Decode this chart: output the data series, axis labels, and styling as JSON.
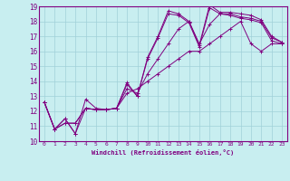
{
  "xlabel": "Windchill (Refroidissement éolien,°C)",
  "background_color": "#c8eef0",
  "line_color": "#800080",
  "grid_color": "#a0d0d8",
  "xlim": [
    -0.5,
    23.5
  ],
  "ylim": [
    10,
    19
  ],
  "xticks": [
    0,
    1,
    2,
    3,
    4,
    5,
    6,
    7,
    8,
    9,
    10,
    11,
    12,
    13,
    14,
    15,
    16,
    17,
    18,
    19,
    20,
    21,
    22,
    23
  ],
  "yticks": [
    10,
    11,
    12,
    13,
    14,
    15,
    16,
    17,
    18,
    19
  ],
  "series": [
    [
      12.6,
      10.8,
      11.5,
      10.5,
      12.8,
      12.2,
      12.1,
      12.2,
      13.9,
      13.0,
      15.6,
      17.0,
      18.7,
      18.5,
      18.0,
      16.4,
      19.1,
      18.6,
      18.6,
      18.5,
      18.4,
      18.1,
      17.0,
      16.6
    ],
    [
      12.6,
      10.8,
      11.5,
      10.5,
      12.2,
      12.1,
      12.1,
      12.2,
      13.8,
      13.0,
      15.5,
      16.9,
      18.5,
      18.4,
      17.9,
      16.3,
      18.9,
      18.5,
      18.5,
      18.3,
      18.2,
      18.0,
      16.9,
      16.6
    ],
    [
      12.6,
      10.8,
      11.2,
      11.2,
      12.2,
      12.1,
      12.1,
      12.2,
      13.5,
      13.2,
      14.5,
      15.5,
      16.5,
      17.5,
      18.0,
      16.5,
      17.8,
      18.5,
      18.4,
      18.2,
      18.1,
      17.9,
      16.7,
      16.5
    ],
    [
      12.6,
      10.8,
      11.2,
      11.2,
      12.2,
      12.1,
      12.1,
      12.2,
      13.2,
      13.5,
      14.0,
      14.5,
      15.0,
      15.5,
      16.0,
      16.0,
      16.5,
      17.0,
      17.5,
      18.0,
      16.5,
      16.0,
      16.5,
      16.5
    ]
  ]
}
